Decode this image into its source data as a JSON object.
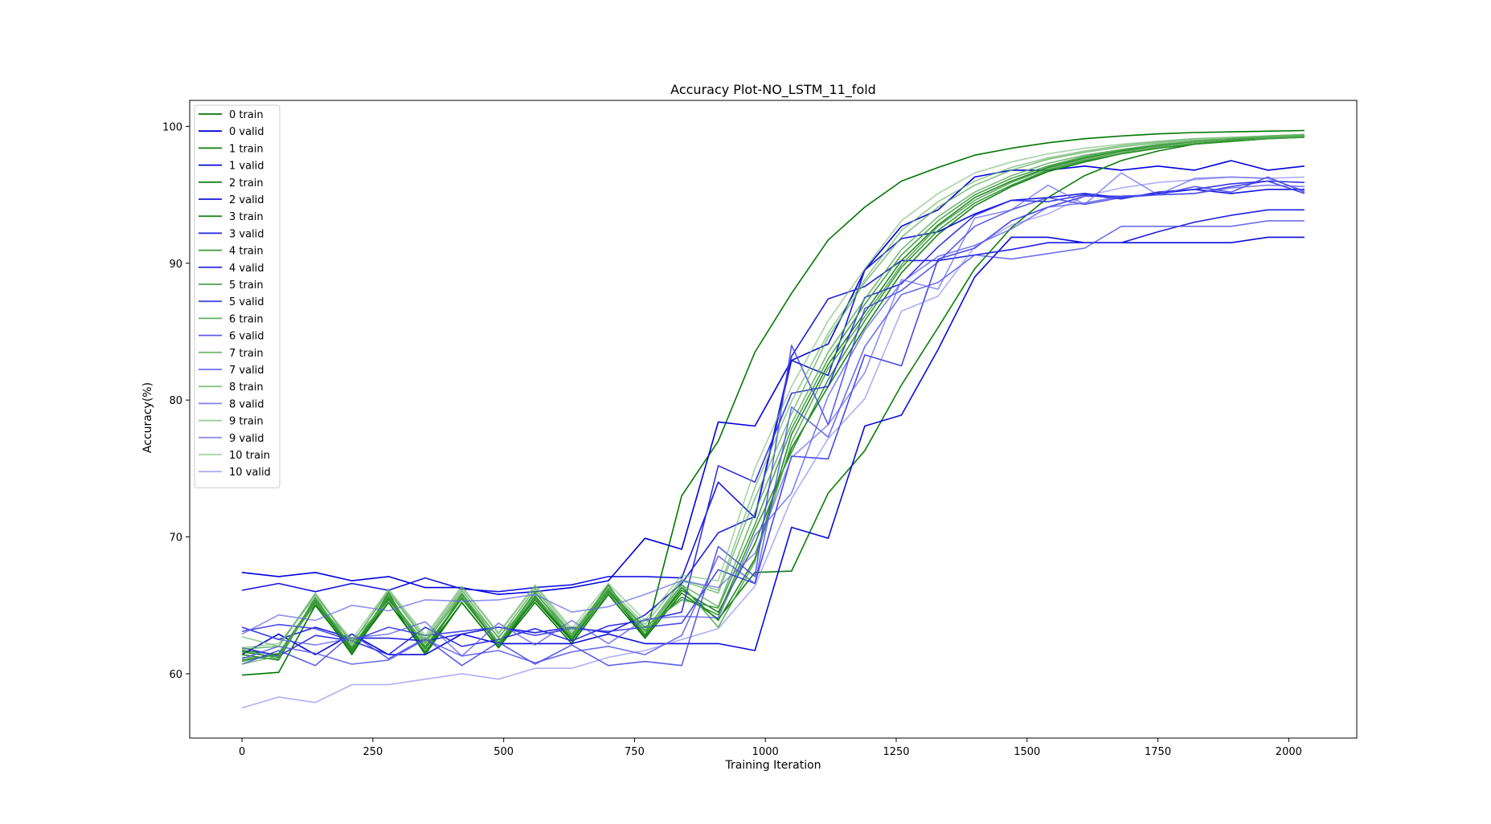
{
  "chart_data": {
    "type": "line",
    "title": "Accuracy Plot-NO_LSTM_11_fold",
    "xlabel": "Training Iteration",
    "ylabel": "Accuracy(%)",
    "xlim": [
      -100,
      2130
    ],
    "ylim": [
      55.3,
      101.9
    ],
    "x_ticks": [
      0,
      250,
      500,
      750,
      1000,
      1250,
      1500,
      1750,
      2000
    ],
    "y_ticks": [
      60,
      70,
      80,
      90,
      100
    ],
    "grid": false,
    "legend_position": "top-left",
    "x": [
      0,
      70,
      140,
      210,
      280,
      350,
      420,
      490,
      560,
      630,
      700,
      770,
      840,
      910,
      980,
      1050,
      1120,
      1190,
      1260,
      1330,
      1400,
      1470,
      1540,
      1610,
      1680,
      1750,
      1820,
      1890,
      1960,
      2030
    ],
    "series": [
      {
        "name": "0 train",
        "color": "#007700",
        "alpha": 1.0,
        "values": [
          59.9,
          60.1,
          65.0,
          61.6,
          65.2,
          61.6,
          65.2,
          61.9,
          65.2,
          62.2,
          65.8,
          62.6,
          73.0,
          77.0,
          83.5,
          87.8,
          91.7,
          94.1,
          96.0,
          97.0,
          97.9,
          98.4,
          98.8,
          99.1,
          99.3,
          99.45,
          99.55,
          99.6,
          99.65,
          99.7
        ]
      },
      {
        "name": "0 valid",
        "color": "#0000dd",
        "alpha": 1.0,
        "values": [
          67.4,
          67.1,
          67.4,
          66.8,
          67.1,
          66.3,
          66.3,
          65.8,
          66.0,
          66.3,
          66.8,
          69.9,
          69.1,
          78.4,
          78.1,
          82.9,
          84.1,
          89.5,
          92.7,
          93.9,
          96.3,
          96.8,
          96.8,
          97.1,
          96.8,
          97.1,
          96.8,
          97.5,
          96.8,
          97.1
        ]
      },
      {
        "name": "1 train",
        "color": "#0b7d0b",
        "alpha": 1.0,
        "values": [
          61.7,
          61.4,
          65.2,
          61.4,
          65.5,
          61.4,
          65.2,
          61.9,
          65.5,
          62.5,
          66.2,
          62.6,
          65.9,
          64.0,
          67.4,
          67.5,
          73.2,
          76.3,
          81.1,
          85.3,
          89.6,
          92.6,
          94.8,
          96.4,
          97.5,
          98.2,
          98.7,
          99.0,
          99.2,
          99.3
        ]
      },
      {
        "name": "1 valid",
        "color": "#0a0ade",
        "alpha": 1.0,
        "values": [
          61.4,
          62.9,
          61.4,
          62.9,
          61.4,
          61.4,
          62.9,
          62.2,
          62.2,
          62.2,
          62.9,
          62.2,
          62.2,
          62.2,
          61.7,
          70.7,
          69.9,
          78.1,
          78.9,
          83.7,
          89.0,
          91.9,
          91.9,
          91.5,
          91.5,
          91.5,
          91.5,
          91.5,
          91.9,
          91.9
        ]
      },
      {
        "name": "2 train",
        "color": "#178417",
        "alpha": 1.0,
        "values": [
          61.6,
          61.2,
          65.3,
          61.8,
          65.6,
          61.8,
          65.5,
          62.1,
          65.4,
          62.4,
          66.0,
          62.8,
          66.1,
          64.5,
          69.5,
          76.5,
          81.0,
          85.3,
          89.3,
          92.1,
          94.2,
          95.6,
          96.7,
          97.4,
          98.0,
          98.4,
          98.7,
          98.9,
          99.1,
          99.2
        ]
      },
      {
        "name": "2 valid",
        "color": "#1414e0",
        "alpha": 1.0,
        "values": [
          66.1,
          66.6,
          66.0,
          66.6,
          66.1,
          67.0,
          66.2,
          66.0,
          66.3,
          66.5,
          67.1,
          67.1,
          67.0,
          74.0,
          71.4,
          82.9,
          81.8,
          89.5,
          91.8,
          92.3,
          93.6,
          94.6,
          94.8,
          95.1,
          94.8,
          95.1,
          95.4,
          95.1,
          95.4,
          95.4
        ]
      },
      {
        "name": "3 train",
        "color": "#228b22",
        "alpha": 1.0,
        "values": [
          61.4,
          61.0,
          65.6,
          61.5,
          65.9,
          61.5,
          65.8,
          62.0,
          65.6,
          62.7,
          66.5,
          62.7,
          66.3,
          63.9,
          68.4,
          77.5,
          82.6,
          86.4,
          90.2,
          92.8,
          94.8,
          96.0,
          97.0,
          97.7,
          98.2,
          98.6,
          98.9,
          99.1,
          99.3,
          99.4
        ]
      },
      {
        "name": "3 valid",
        "color": "#1f1fe2",
        "alpha": 1.0,
        "values": [
          63.4,
          62.5,
          63.4,
          62.6,
          62.6,
          62.4,
          62.9,
          63.4,
          63.0,
          63.4,
          63.0,
          64.3,
          66.6,
          70.3,
          71.5,
          83.2,
          87.4,
          88.3,
          90.2,
          90.2,
          90.6,
          91.0,
          91.5,
          91.5,
          91.5,
          92.3,
          93.0,
          93.5,
          93.9,
          93.9
        ]
      },
      {
        "name": "4 train",
        "color": "#2e922e",
        "alpha": 0.95,
        "values": [
          61.0,
          61.4,
          65.1,
          61.7,
          65.4,
          62.0,
          65.5,
          62.1,
          65.7,
          62.6,
          65.9,
          63.1,
          65.6,
          64.3,
          70.5,
          76.2,
          81.5,
          85.8,
          89.7,
          92.4,
          94.4,
          95.7,
          96.8,
          97.5,
          98.0,
          98.4,
          98.7,
          98.9,
          99.1,
          99.2
        ]
      },
      {
        "name": "4 valid",
        "color": "#2929e4",
        "alpha": 0.95,
        "values": [
          61.9,
          61.3,
          62.8,
          62.4,
          61.4,
          63.4,
          62.0,
          62.5,
          63.3,
          62.4,
          63.5,
          63.9,
          64.5,
          75.2,
          74.0,
          80.5,
          81.0,
          87.5,
          88.5,
          91.2,
          93.5,
          94.6,
          94.5,
          95.0,
          94.7,
          95.2,
          95.4,
          95.8,
          96.0,
          95.9
        ]
      },
      {
        "name": "5 train",
        "color": "#399939",
        "alpha": 0.9,
        "values": [
          60.9,
          61.5,
          65.4,
          61.9,
          65.7,
          61.9,
          65.6,
          62.2,
          65.9,
          62.9,
          66.1,
          63.4,
          65.4,
          64.8,
          70.9,
          77.9,
          83.0,
          87.0,
          90.6,
          93.1,
          95.0,
          96.2,
          97.1,
          97.8,
          98.3,
          98.6,
          98.9,
          99.1,
          99.2,
          99.3
        ]
      },
      {
        "name": "5 valid",
        "color": "#3434e6",
        "alpha": 0.9,
        "values": [
          63.1,
          63.6,
          63.3,
          62.4,
          63.4,
          62.8,
          63.1,
          63.4,
          62.8,
          63.3,
          63.1,
          63.4,
          63.7,
          67.6,
          66.6,
          75.9,
          75.7,
          83.3,
          82.5,
          90.3,
          91.1,
          93.1,
          94.1,
          94.9,
          94.9,
          95.0,
          95.1,
          95.6,
          96.0,
          95.1
        ]
      },
      {
        "name": "6 train",
        "color": "#45a045",
        "alpha": 0.85,
        "values": [
          61.2,
          61.1,
          65.5,
          62.0,
          65.6,
          62.2,
          65.9,
          62.3,
          66.0,
          62.6,
          66.3,
          62.9,
          66.5,
          63.4,
          68.2,
          76.9,
          82.3,
          86.1,
          89.9,
          92.7,
          94.6,
          95.9,
          96.9,
          97.6,
          98.1,
          98.5,
          98.8,
          99.0,
          99.1,
          99.2
        ]
      },
      {
        "name": "6 valid",
        "color": "#3f3fe8",
        "alpha": 0.85,
        "values": [
          60.7,
          61.7,
          60.6,
          62.9,
          61.1,
          62.6,
          60.6,
          62.3,
          60.7,
          62.1,
          60.6,
          60.9,
          60.6,
          69.3,
          67.1,
          84.0,
          78.2,
          86.7,
          88.0,
          90.1,
          92.7,
          93.9,
          94.8,
          94.3,
          94.8,
          95.0,
          95.6,
          95.2,
          96.3,
          95.2
        ]
      },
      {
        "name": "7 train",
        "color": "#50a750",
        "alpha": 0.8,
        "values": [
          61.8,
          62.0,
          65.8,
          62.2,
          66.0,
          62.4,
          66.1,
          62.6,
          66.2,
          62.9,
          66.2,
          63.2,
          66.5,
          64.9,
          71.8,
          78.3,
          83.5,
          87.4,
          91.0,
          93.4,
          95.2,
          96.4,
          97.3,
          97.9,
          98.3,
          98.7,
          98.9,
          99.1,
          99.2,
          99.3
        ]
      },
      {
        "name": "7 valid",
        "color": "#4a4aea",
        "alpha": 0.8,
        "values": [
          61.1,
          62.0,
          61.5,
          60.7,
          61.0,
          62.5,
          61.3,
          61.7,
          60.8,
          61.6,
          62.0,
          61.4,
          62.8,
          68.6,
          66.6,
          79.5,
          77.3,
          83.9,
          87.7,
          88.6,
          90.6,
          90.3,
          90.7,
          91.1,
          92.7,
          92.7,
          92.7,
          92.7,
          93.1,
          93.1
        ]
      },
      {
        "name": "8 train",
        "color": "#5cae5c",
        "alpha": 0.75,
        "values": [
          60.7,
          61.3,
          65.2,
          62.4,
          65.3,
          62.3,
          65.7,
          62.7,
          65.5,
          62.8,
          65.9,
          63.1,
          66.8,
          65.9,
          72.8,
          79.0,
          84.6,
          88.6,
          91.9,
          94.1,
          95.7,
          96.8,
          97.6,
          98.1,
          98.5,
          98.8,
          99.0,
          99.1,
          99.2,
          99.3
        ]
      },
      {
        "name": "8 valid",
        "color": "#5555ec",
        "alpha": 0.75,
        "values": [
          63.4,
          62.5,
          62.1,
          62.6,
          62.9,
          63.8,
          61.3,
          63.7,
          62.1,
          63.9,
          62.2,
          64.0,
          64.2,
          64.1,
          70.1,
          73.2,
          80.3,
          85.1,
          88.6,
          90.5,
          91.3,
          92.5,
          94.1,
          94.4,
          94.9,
          95.0,
          95.1,
          95.5,
          95.7,
          95.6
        ]
      },
      {
        "name": "9 train",
        "color": "#67b567",
        "alpha": 0.7,
        "values": [
          62.7,
          62.0,
          65.9,
          62.2,
          66.1,
          62.6,
          66.3,
          62.9,
          66.4,
          63.1,
          66.3,
          63.6,
          66.9,
          66.1,
          73.6,
          79.9,
          84.9,
          88.8,
          92.4,
          94.5,
          96.0,
          97.0,
          97.7,
          98.2,
          98.6,
          98.9,
          99.1,
          99.2,
          99.3,
          99.4
        ]
      },
      {
        "name": "9 valid",
        "color": "#6060ee",
        "alpha": 0.7,
        "values": [
          62.9,
          64.3,
          63.9,
          65.0,
          64.6,
          65.4,
          65.3,
          65.4,
          65.8,
          64.5,
          64.9,
          65.8,
          66.8,
          66.3,
          68.8,
          75.8,
          78.2,
          82.0,
          88.8,
          88.1,
          93.3,
          93.9,
          95.7,
          94.3,
          96.6,
          95.0,
          96.2,
          96.3,
          96.2,
          95.3
        ]
      },
      {
        "name": "10 train",
        "color": "#73bc73",
        "alpha": 0.65,
        "values": [
          61.9,
          62.2,
          65.6,
          62.5,
          66.2,
          62.8,
          66.4,
          63.0,
          66.5,
          63.3,
          66.6,
          63.9,
          67.2,
          66.8,
          75.0,
          81.0,
          85.8,
          89.6,
          93.1,
          95.1,
          96.6,
          97.4,
          98.0,
          98.4,
          98.7,
          98.9,
          99.1,
          99.2,
          99.3,
          99.4
        ]
      },
      {
        "name": "10 valid",
        "color": "#6b6bf0",
        "alpha": 0.55,
        "values": [
          57.5,
          58.3,
          57.9,
          59.2,
          59.2,
          59.6,
          60.0,
          59.6,
          60.4,
          60.4,
          61.2,
          61.7,
          62.5,
          63.3,
          66.4,
          72.8,
          77.2,
          80.1,
          86.5,
          87.6,
          91.2,
          92.8,
          93.6,
          94.9,
          95.5,
          95.9,
          96.1,
          96.3,
          96.2,
          96.3
        ]
      }
    ]
  }
}
